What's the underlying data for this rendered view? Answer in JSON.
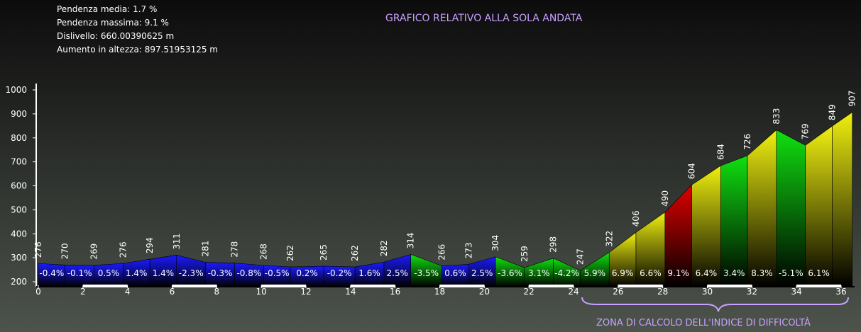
{
  "chart_data": {
    "type": "elevation-profile",
    "title": "GRAFICO RELATIVO ALLA SOLA ANDATA",
    "info": [
      "Pendenza media: 1.7 %",
      "Pendenza massima: 9.1 %",
      "Dislivello: 660.00390625 m",
      "Aumento in altezza: 897.51953125 m"
    ],
    "annotation": "ZONA DI CALCOLO DELL'INDICE DI DIFFICOLTÀ",
    "annotation_range": [
      24.5,
      36
    ],
    "x": [
      0,
      1.2,
      2.5,
      3.8,
      5.0,
      6.2,
      7.5,
      8.8,
      10.1,
      11.3,
      12.8,
      14.2,
      15.5,
      16.7,
      18.1,
      19.3,
      20.5,
      21.8,
      23.1,
      24.3,
      25.6,
      26.8,
      28.1,
      29.3,
      30.6,
      31.8,
      33.1,
      34.4,
      35.6,
      36.5
    ],
    "elevations": [
      276,
      270,
      269,
      276,
      294,
      311,
      281,
      278,
      268,
      262,
      265,
      262,
      282,
      314,
      266,
      273,
      304,
      259,
      298,
      247,
      322,
      406,
      490,
      604,
      684,
      726,
      833,
      769,
      849,
      907
    ],
    "gradients": [
      -0.4,
      -0.1,
      0.5,
      1.4,
      1.4,
      -2.3,
      -0.3,
      -0.8,
      -0.5,
      0.2,
      -0.2,
      1.6,
      2.5,
      -3.5,
      0.6,
      2.5,
      -3.6,
      3.1,
      -4.2,
      5.9,
      6.9,
      6.6,
      9.1,
      6.4,
      3.4,
      8.3,
      -5.1,
      6.1,
      null
    ],
    "gradient_labels": [
      "-0.4%",
      "-0.1%",
      "0.5%",
      "1.4%",
      "1.4%",
      "-2.3%",
      "-0.3%",
      "-0.8%",
      "-0.5%",
      "0.2%",
      "-0.2%",
      "1.6%",
      "2.5%",
      "-3.5%",
      "0.6%",
      "2.5%",
      "-3.6%",
      "3.1%",
      "-4.2%",
      "5.9%",
      "6.9%",
      "6.6%",
      "9.1%",
      "6.4%",
      "3.4%",
      "8.3%",
      "-5.1%",
      "6.1%",
      null
    ],
    "segment_colors": [
      "#1a1aff",
      "#1a1aff",
      "#1a1aff",
      "#1a1aff",
      "#1a1aff",
      "#1a1aff",
      "#1a1aff",
      "#1a1aff",
      "#1a1aff",
      "#1a1aff",
      "#1a1aff",
      "#1a1aff",
      "#1a1aff",
      "#10e010",
      "#1a1aff",
      "#1a1aff",
      "#10e010",
      "#10e010",
      "#10e010",
      "#10e010",
      "#f0f010",
      "#f0f010",
      "#e00000",
      "#f0f010",
      "#10e010",
      "#f0f010",
      "#10e010",
      "#f0f010",
      "#f0f010"
    ],
    "xlim": [
      0,
      36.6
    ],
    "xticks": [
      0,
      2,
      4,
      6,
      8,
      10,
      12,
      14,
      16,
      18,
      20,
      22,
      24,
      26,
      28,
      30,
      32,
      34,
      36
    ],
    "ylim": [
      200,
      1000
    ],
    "yticks": [
      200,
      300,
      400,
      500,
      600,
      700,
      800,
      900,
      1000
    ]
  }
}
